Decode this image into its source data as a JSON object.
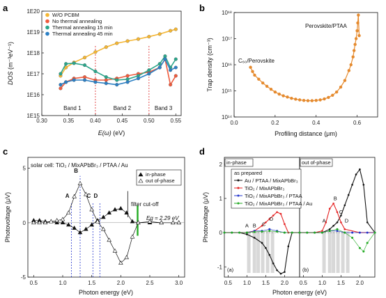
{
  "chart_data": [
    {
      "panel": "a",
      "type": "scatter",
      "xlabel_main": "E(ω)",
      "xlabel_unit": "(eV)",
      "ylabel_main": "DOS",
      "ylabel_unit": "(m⁻³eV⁻¹)",
      "xlim": [
        0.3,
        0.56
      ],
      "yscale": "log",
      "ylim": [
        1000000000000000.0,
        1e+20
      ],
      "xticks": [
        "0.30",
        "0.35",
        "0.40",
        "0.45",
        "0.50",
        "0.55"
      ],
      "yticks": [
        "1E15",
        "1E16",
        "1E17",
        "1E18",
        "1E19",
        "1E20"
      ],
      "band_lines": [
        0.4,
        0.5
      ],
      "bands": [
        {
          "label": "Band 1",
          "x": 0.357
        },
        {
          "label": "Band 2",
          "x": 0.45
        },
        {
          "label": "Band 3",
          "x": 0.527
        }
      ],
      "series": [
        {
          "name": "W/O PCBM",
          "color": "#f5b632",
          "x": [
            0.335,
            0.345,
            0.36,
            0.38,
            0.4,
            0.42,
            0.44,
            0.46,
            0.48,
            0.5,
            0.52,
            0.54,
            0.55
          ],
          "y": [
            8e+16,
            2e+17,
            3.5e+17,
            6e+17,
            1.1e+18,
            1.9e+18,
            2.9e+18,
            3.7e+18,
            4.6e+18,
            6e+18,
            8e+18,
            1.15e+19,
            1.35e+19
          ]
        },
        {
          "name": "No thermal annealing",
          "color": "#ef5a3c",
          "x": [
            0.335,
            0.345,
            0.36,
            0.38,
            0.4,
            0.42,
            0.44,
            0.46,
            0.48,
            0.5,
            0.52,
            0.53,
            0.54,
            0.55
          ],
          "y": [
            2e+16,
            4e+16,
            6e+16,
            7e+16,
            5e+16,
            5e+16,
            6e+16,
            8e+16,
            1e+17,
            1.2e+17,
            2e+17,
            5e+17,
            3e+16,
            8e+16
          ]
        },
        {
          "name": "Thermal annealing 15 min",
          "color": "#2aa58a",
          "x": [
            0.335,
            0.345,
            0.36,
            0.38,
            0.4,
            0.42,
            0.44,
            0.46,
            0.48,
            0.5,
            0.52,
            0.53,
            0.54,
            0.55
          ],
          "y": [
            1e+17,
            3e+17,
            3.2e+17,
            2.6e+17,
            1.3e+17,
            7e+16,
            5e+16,
            5.5e+16,
            8e+16,
            1.5e+17,
            3e+17,
            7e+17,
            2e+17,
            5e+17
          ]
        },
        {
          "name": "Thermal annealing 45 min",
          "color": "#2b7fc4",
          "x": [
            0.335,
            0.345,
            0.36,
            0.38,
            0.4,
            0.42,
            0.44,
            0.46,
            0.48,
            0.5,
            0.52,
            0.53,
            0.54,
            0.55
          ],
          "y": [
            3e+16,
            4e+16,
            5e+16,
            5e+16,
            4e+16,
            3.5e+16,
            3e+16,
            4e+16,
            6e+16,
            1e+17,
            2e+17,
            5e+17,
            1.5e+17,
            2e+17
          ]
        }
      ]
    },
    {
      "panel": "b",
      "type": "line",
      "xlabel_main": "Profiling distance",
      "xlabel_unit": "(μm)",
      "ylabel_main": "Trap density",
      "ylabel_unit": "(cm⁻³)",
      "xlim": [
        0.0,
        0.7
      ],
      "yscale": "log",
      "ylim": [
        100000000000000.0,
        1e+18
      ],
      "xticks": [
        "0.0",
        "0.2",
        "0.4",
        "0.6"
      ],
      "yticks": [
        "10¹⁴",
        "10¹⁵",
        "10¹⁶",
        "10¹⁷",
        "10¹⁸"
      ],
      "annotations": [
        "C₆₀/Perovskite",
        "Perovskite/PTAA"
      ],
      "series": [
        {
          "name": "",
          "color": "#e58a2e",
          "x": [
            0.08,
            0.09,
            0.1,
            0.12,
            0.14,
            0.16,
            0.18,
            0.2,
            0.22,
            0.24,
            0.26,
            0.28,
            0.3,
            0.32,
            0.34,
            0.36,
            0.38,
            0.4,
            0.42,
            0.44,
            0.46,
            0.48,
            0.5,
            0.52,
            0.54,
            0.56,
            0.57,
            0.58,
            0.585,
            0.59,
            0.595,
            0.6,
            0.603,
            0.606,
            0.61
          ],
          "y": [
            8000000000000000.0,
            5500000000000000.0,
            4000000000000000.0,
            2800000000000000.0,
            2000000000000000.0,
            1500000000000000.0,
            1150000000000000.0,
            900000000000000.0,
            750000000000000.0,
            650000000000000.0,
            580000000000000.0,
            520000000000000.0,
            480000000000000.0,
            450000000000000.0,
            430000000000000.0,
            420000000000000.0,
            420000000000000.0,
            430000000000000.0,
            450000000000000.0,
            490000000000000.0,
            560000000000000.0,
            680000000000000.0,
            900000000000000.0,
            1400000000000000.0,
            2500000000000000.0,
            6000000000000000.0,
            1e+16,
            2e+16,
            3.5e+16,
            6e+16,
            1e+17,
            2e+17,
            4e+17,
            8e+17,
            1.3e+17
          ]
        }
      ]
    },
    {
      "panel": "c",
      "type": "line",
      "title": "solar cell: TiO₂ / MixAPbBr₃ / PTAA / Au",
      "xlabel_main": "Photon energy",
      "xlabel_unit": "(eV)",
      "ylabel_main": "Photovoltage",
      "ylabel_unit": "(μV)",
      "xlim": [
        0.4,
        3.1
      ],
      "ylim": [
        -5,
        6
      ],
      "xticks": [
        "0.5",
        "1.0",
        "1.5",
        "2.0",
        "2.5",
        "3.0"
      ],
      "yticks": [
        "-5",
        "0",
        "5"
      ],
      "markers": [
        {
          "label": "A",
          "x": 1.15,
          "color": "#2233cc"
        },
        {
          "label": "B",
          "x": 1.3,
          "color": "#2233cc"
        },
        {
          "label": "C",
          "x": 1.52,
          "color": "#2233cc"
        },
        {
          "label": "D",
          "x": 1.64,
          "color": "#2233cc"
        }
      ],
      "annotations": [
        "filter cut-off",
        "Eg = 2.29 eV"
      ],
      "eg_x": 2.29,
      "eg_color": "#22aa22",
      "series": [
        {
          "name": "in-phase",
          "color": "#111111",
          "marker": "filled-triangle",
          "x": [
            0.5,
            0.6,
            0.7,
            0.8,
            0.9,
            1.0,
            1.1,
            1.2,
            1.3,
            1.4,
            1.5,
            1.6,
            1.7,
            1.8,
            1.9,
            2.0,
            2.1,
            2.2,
            2.3,
            2.5,
            2.7,
            2.9,
            3.0
          ],
          "y": [
            0.2,
            0.2,
            0.1,
            0.1,
            0,
            0,
            -0.2,
            -0.5,
            -0.9,
            -0.6,
            -0.2,
            0.2,
            0.5,
            0.9,
            1.2,
            1.3,
            0.9,
            0.1,
            0,
            0,
            0,
            0,
            0
          ]
        },
        {
          "name": "out of-phase",
          "color": "#111111",
          "marker": "hollow-triangle",
          "x": [
            0.5,
            0.6,
            0.7,
            0.8,
            0.9,
            1.0,
            1.1,
            1.2,
            1.3,
            1.4,
            1.5,
            1.6,
            1.7,
            1.8,
            1.9,
            2.0,
            2.1,
            2.2,
            2.3,
            2.5,
            2.7,
            2.9,
            3.0
          ],
          "y": [
            0,
            0,
            0,
            0.1,
            0.2,
            0.3,
            0.9,
            2.4,
            3.6,
            2.6,
            1.2,
            0.1,
            -0.6,
            -1.6,
            -2.6,
            -3.7,
            -3.2,
            -1.3,
            0,
            0.1,
            0,
            0,
            0
          ]
        }
      ]
    },
    {
      "panel": "d",
      "type": "line",
      "xlabel_main": "Photon energy",
      "xlabel_unit": "(eV)",
      "ylabel_main": "Photovoltage",
      "ylabel_unit": "(μV)",
      "xlim": [
        0.4,
        2.4
      ],
      "ylim": [
        -1.3,
        2.2
      ],
      "xticks": [
        "0.5",
        "1.0",
        "1.5",
        "2.0"
      ],
      "yticks": [
        "-1",
        "0",
        "1",
        "2"
      ],
      "subpanels": [
        "in-phase",
        "out of-phase"
      ],
      "sublabels": [
        "(a)",
        "(b)"
      ],
      "legend_header": "as prepared",
      "peak_labels": [
        "A",
        "B",
        "C",
        "D"
      ],
      "shaded_bands": [
        1.05,
        1.2,
        1.3,
        1.42,
        1.55,
        1.68
      ],
      "series_names": [
        "Au / PTAA / MixAPbBr₃",
        "TiO₂ / MixAPbBr₃",
        "TiO₂ / MixAPbBr₃ / PTAA",
        "TiO₂ / MixAPbBr₃ / PTAA / Au"
      ],
      "series_colors": [
        "#111111",
        "#e52222",
        "#2233cc",
        "#22aa22"
      ],
      "series_in_phase": [
        {
          "x": [
            0.4,
            0.6,
            0.8,
            1.0,
            1.2,
            1.4,
            1.5,
            1.6,
            1.7,
            1.8,
            1.9,
            2.0,
            2.1,
            2.2,
            2.4
          ],
          "y": [
            0,
            0,
            0,
            -0.05,
            -0.15,
            -0.3,
            -0.45,
            -0.65,
            -0.9,
            -1.1,
            -1.2,
            -1.15,
            -0.4,
            0,
            0
          ]
        },
        {
          "x": [
            0.4,
            0.6,
            0.8,
            1.0,
            1.2,
            1.4,
            1.5,
            1.6,
            1.7,
            1.8,
            1.9,
            2.0,
            2.1,
            2.2,
            2.4
          ],
          "y": [
            0,
            0,
            0,
            0,
            0.05,
            0.2,
            0.3,
            0.4,
            0.5,
            0.6,
            0.55,
            0.25,
            0,
            0,
            0
          ]
        },
        {
          "x": [
            0.4,
            0.6,
            0.8,
            1.0,
            1.2,
            1.4,
            1.6,
            1.8,
            2.0,
            2.2,
            2.4
          ],
          "y": [
            0,
            0,
            0,
            0,
            0.05,
            0.05,
            0.1,
            0.05,
            0,
            0,
            0
          ]
        },
        {
          "x": [
            0.4,
            0.6,
            0.8,
            1.0,
            1.2,
            1.4,
            1.6,
            1.8,
            2.0,
            2.2,
            2.4
          ],
          "y": [
            0,
            0,
            0,
            0,
            0.02,
            0.03,
            0.05,
            0.03,
            0,
            0,
            0
          ]
        }
      ],
      "series_out_phase": [
        {
          "x": [
            0.4,
            0.6,
            0.8,
            1.0,
            1.2,
            1.3,
            1.4,
            1.5,
            1.6,
            1.7,
            1.8,
            1.9,
            2.0,
            2.1,
            2.2,
            2.4
          ],
          "y": [
            0,
            0,
            0,
            0,
            0.1,
            0.2,
            0.3,
            0.5,
            0.8,
            1.1,
            1.4,
            1.7,
            1.85,
            1.4,
            0.3,
            0
          ]
        },
        {
          "x": [
            0.4,
            0.6,
            0.8,
            1.0,
            1.1,
            1.2,
            1.3,
            1.4,
            1.5,
            1.6,
            2.0,
            2.4
          ],
          "y": [
            0,
            0,
            0,
            0.05,
            0.3,
            0.7,
            0.85,
            0.6,
            0.3,
            0.1,
            0,
            0
          ]
        },
        {
          "x": [
            0.4,
            0.6,
            0.8,
            1.0,
            1.2,
            1.4,
            1.6,
            1.8,
            2.0,
            2.2,
            2.4
          ],
          "y": [
            0,
            0,
            0,
            0,
            0.05,
            0.05,
            0,
            0,
            0,
            0,
            0
          ]
        },
        {
          "x": [
            0.4,
            0.6,
            0.8,
            1.0,
            1.2,
            1.4,
            1.6,
            1.8,
            2.0,
            2.1,
            2.2,
            2.4
          ],
          "y": [
            0,
            0,
            0,
            0,
            0.05,
            0.1,
            0,
            -0.15,
            -0.45,
            -0.55,
            -0.3,
            0
          ]
        }
      ]
    }
  ]
}
